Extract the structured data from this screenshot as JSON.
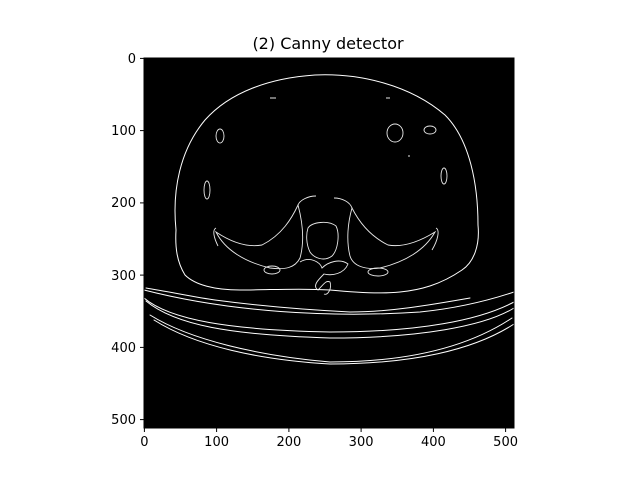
{
  "figure": {
    "title": "(2) Canny detector",
    "image_description_label": "canny-edge-map",
    "xaxis": {
      "ticks": [
        0,
        100,
        200,
        300,
        400,
        500
      ],
      "range": [
        0,
        512
      ]
    },
    "yaxis": {
      "ticks": [
        0,
        100,
        200,
        300,
        400,
        500
      ],
      "range": [
        0,
        512
      ],
      "inverted": true
    }
  }
}
